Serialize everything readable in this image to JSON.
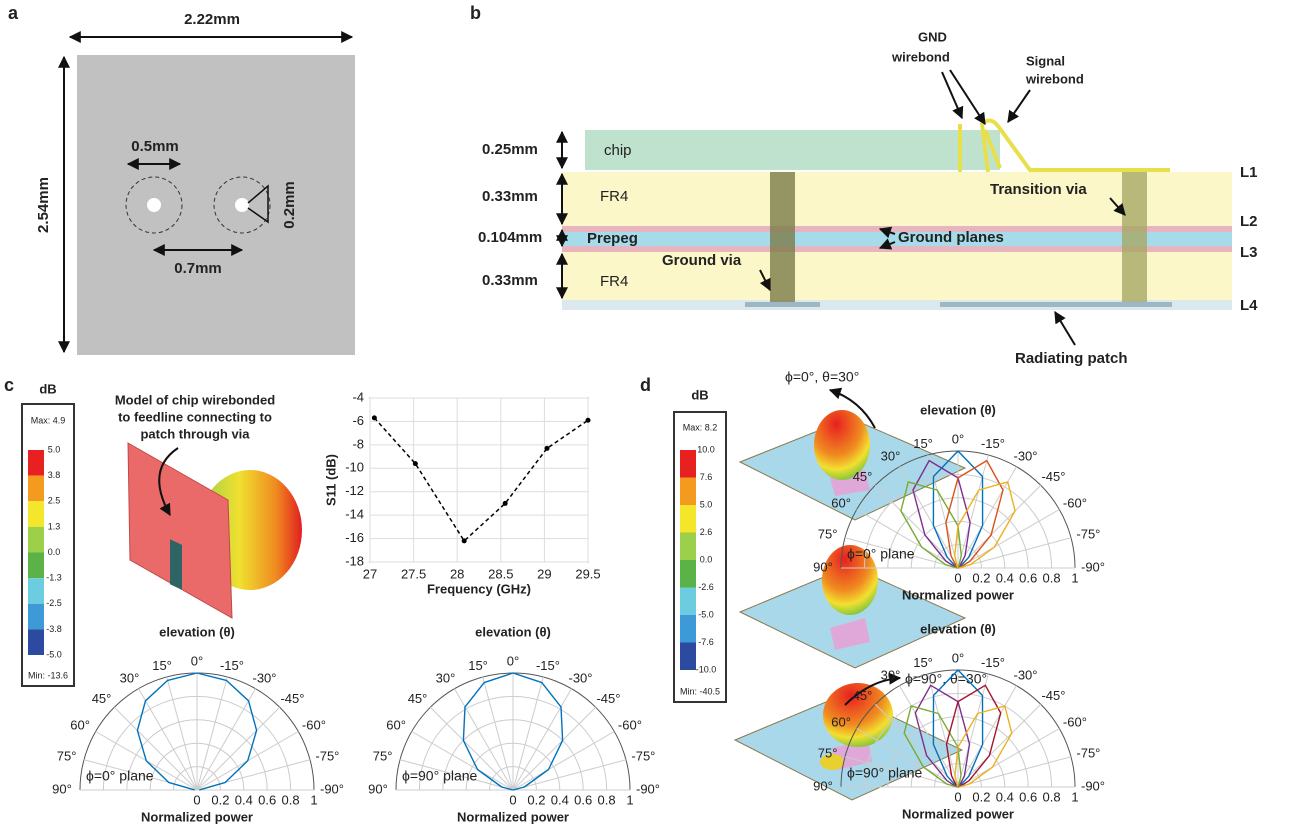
{
  "panels": {
    "a": {
      "letter": "a",
      "width": "2.22mm",
      "height": "2.54mm",
      "hole": "0.5mm",
      "gap": "0.2mm",
      "pitch": "0.7mm"
    },
    "b": {
      "letter": "b",
      "gnd_wirebond": [
        "GND",
        "wirebond"
      ],
      "signal_wirebond": [
        "Signal",
        "wirebond"
      ],
      "thick_chip": "0.25mm",
      "thick_fr4_top": "0.33mm",
      "thick_prepeg": "0.104mm",
      "thick_fr4_bottom": "0.33mm",
      "chip": "chip",
      "fr4_top": "FR4",
      "prepeg": "Prepeg",
      "fr4_bottom": "FR4",
      "ground_planes": "Ground planes",
      "transition_via": "Transition via",
      "ground_via": "Ground via",
      "radiating_patch": "Radiating patch",
      "layers": [
        "L1",
        "L2",
        "L3",
        "L4"
      ]
    },
    "c": {
      "letter": "c",
      "caption": [
        "Model of chip wirebonded",
        "to feedline connecting to",
        "patch through via"
      ],
      "colorbar": {
        "unit": "dB",
        "max": "Max: 4.9",
        "labels": [
          "5.0",
          "3.8",
          "2.5",
          "1.3",
          "0.0",
          "-1.3",
          "-2.5",
          "-3.8",
          "-5.0"
        ],
        "min": "Min: -13.6"
      }
    },
    "d": {
      "letter": "d",
      "beam_top": "ϕ=0°, θ=30°",
      "beam_bottom": "ϕ=90°, θ=30°",
      "colorbar": {
        "unit": "dB",
        "max": "Max: 8.2",
        "labels": [
          "10.0",
          "7.6",
          "5.0",
          "2.6",
          "0.0",
          "-2.6",
          "-5.0",
          "-7.6",
          "-10.0"
        ],
        "min": "Min: -40.5"
      }
    }
  },
  "chart_data": [
    {
      "type": "line",
      "xlabel": "Frequency (GHz)",
      "ylabel": "S11 (dB)",
      "color": "#000000",
      "grid": true,
      "x": [
        27.05,
        27.52,
        28.08,
        28.55,
        29.03,
        29.5
      ],
      "values": [
        -5.7,
        -9.6,
        -16.2,
        -13,
        -8.3,
        -5.9
      ],
      "xlim": [
        27,
        29.5
      ],
      "xticks": [
        27,
        27.5,
        28,
        28.5,
        29,
        29.5
      ],
      "ylim": [
        -18,
        -4
      ],
      "yticks": [
        -18,
        -16,
        -14,
        -12,
        -10,
        -8,
        -6,
        -4
      ]
    },
    {
      "type": "polar",
      "title": "elevation (θ)",
      "xlabel": "Normalized power",
      "annotation": "ϕ=0° plane",
      "x": [
        -90,
        -75,
        -60,
        -45,
        -30,
        -15,
        0,
        15,
        30,
        45,
        60,
        75,
        90
      ],
      "xlim": [
        -90,
        90
      ],
      "xticks": [
        {
          "value": 90,
          "label": "90°"
        },
        {
          "value": 75,
          "label": "75°"
        },
        {
          "value": 60,
          "label": "60°"
        },
        {
          "value": 45,
          "label": "45°"
        },
        {
          "value": 30,
          "label": "30°"
        },
        {
          "value": 15,
          "label": "15°"
        },
        {
          "value": 0,
          "label": "0°"
        },
        {
          "value": -15,
          "label": "-15°"
        },
        {
          "value": -30,
          "label": "-30°"
        },
        {
          "value": -45,
          "label": "-45°"
        },
        {
          "value": -60,
          "label": "-60°"
        },
        {
          "value": -75,
          "label": "-75°"
        },
        {
          "value": -90,
          "label": "-90°"
        }
      ],
      "ylim": [
        0,
        1
      ],
      "yticks": [
        0,
        0.2,
        0.4,
        0.6,
        0.8,
        1
      ],
      "series": [
        {
          "color": "#0072bd",
          "values": [
            0.02,
            0.25,
            0.5,
            0.72,
            0.88,
            0.97,
            1,
            0.97,
            0.88,
            0.72,
            0.5,
            0.25,
            0.02
          ]
        }
      ]
    },
    {
      "type": "polar",
      "title": "elevation (θ)",
      "xlabel": "Normalized power",
      "annotation": "ϕ=90° plane",
      "x": [
        -90,
        -75,
        -60,
        -45,
        -30,
        -15,
        0,
        15,
        30,
        45,
        60,
        75,
        90
      ],
      "xlim": [
        -90,
        90
      ],
      "xticks": [
        {
          "value": 90,
          "label": "90°"
        },
        {
          "value": 75,
          "label": "75°"
        },
        {
          "value": 60,
          "label": "60°"
        },
        {
          "value": 45,
          "label": "45°"
        },
        {
          "value": 30,
          "label": "30°"
        },
        {
          "value": 15,
          "label": "15°"
        },
        {
          "value": 0,
          "label": "0°"
        },
        {
          "value": -15,
          "label": "-15°"
        },
        {
          "value": -30,
          "label": "-30°"
        },
        {
          "value": -45,
          "label": "-45°"
        },
        {
          "value": -60,
          "label": "-60°"
        },
        {
          "value": -75,
          "label": "-75°"
        },
        {
          "value": -90,
          "label": "-90°"
        }
      ],
      "ylim": [
        0,
        1
      ],
      "yticks": [
        0,
        0.2,
        0.4,
        0.6,
        0.8,
        1
      ],
      "series": [
        {
          "color": "#0072bd",
          "values": [
            0,
            0.1,
            0.35,
            0.6,
            0.82,
            0.95,
            1,
            0.95,
            0.82,
            0.6,
            0.35,
            0.1,
            0
          ]
        }
      ]
    },
    {
      "type": "polar",
      "title": "elevation (θ)",
      "xlabel": "Normalized power",
      "annotation": "ϕ=0° plane",
      "x": [
        -90,
        -75,
        -60,
        -45,
        -30,
        -15,
        0,
        15,
        30,
        45,
        60,
        75,
        90
      ],
      "xlim": [
        -90,
        90
      ],
      "xticks": [
        {
          "value": 90,
          "label": "90°"
        },
        {
          "value": 75,
          "label": "75°"
        },
        {
          "value": 60,
          "label": "60°"
        },
        {
          "value": 45,
          "label": "45°"
        },
        {
          "value": 30,
          "label": "30°"
        },
        {
          "value": 15,
          "label": "15°"
        },
        {
          "value": 0,
          "label": "0°"
        },
        {
          "value": -15,
          "label": "-15°"
        },
        {
          "value": -30,
          "label": "-30°"
        },
        {
          "value": -45,
          "label": "-45°"
        },
        {
          "value": -60,
          "label": "-60°"
        },
        {
          "value": -75,
          "label": "-75°"
        },
        {
          "value": -90,
          "label": "-90°"
        }
      ],
      "ylim": [
        0,
        1
      ],
      "yticks": [
        0,
        0.2,
        0.4,
        0.6,
        0.8,
        1
      ],
      "series": [
        {
          "color": "#0072bd",
          "values": [
            0,
            0,
            0.02,
            0.13,
            0.42,
            0.81,
            1,
            0.81,
            0.42,
            0.13,
            0.02,
            0,
            0
          ]
        },
        {
          "color": "#7e2f8e",
          "values": [
            0,
            0,
            0,
            0.02,
            0.12,
            0.4,
            0.77,
            0.95,
            0.77,
            0.4,
            0.12,
            0.02,
            0
          ]
        },
        {
          "color": "#77ac30",
          "values": [
            0,
            0,
            0,
            0,
            0.01,
            0.11,
            0.36,
            0.69,
            0.85,
            0.69,
            0.36,
            0.11,
            0.01
          ]
        },
        {
          "color": "#d95319",
          "values": [
            0,
            0.02,
            0.12,
            0.4,
            0.77,
            0.95,
            0.77,
            0.4,
            0.12,
            0.02,
            0,
            0,
            0
          ]
        },
        {
          "color": "#edb120",
          "values": [
            0.01,
            0.11,
            0.36,
            0.69,
            0.85,
            0.69,
            0.36,
            0.11,
            0.01,
            0,
            0,
            0,
            0
          ]
        }
      ]
    },
    {
      "type": "polar",
      "title": "elevation (θ)",
      "xlabel": "Normalized power",
      "annotation": "ϕ=90° plane",
      "x": [
        -90,
        -75,
        -60,
        -45,
        -30,
        -15,
        0,
        15,
        30,
        45,
        60,
        75,
        90
      ],
      "xlim": [
        -90,
        90
      ],
      "xticks": [
        {
          "value": 90,
          "label": "90°"
        },
        {
          "value": 75,
          "label": "75°"
        },
        {
          "value": 60,
          "label": "60°"
        },
        {
          "value": 45,
          "label": "45°"
        },
        {
          "value": 30,
          "label": "30°"
        },
        {
          "value": 15,
          "label": "15°"
        },
        {
          "value": 0,
          "label": "0°"
        },
        {
          "value": -15,
          "label": "-15°"
        },
        {
          "value": -30,
          "label": "-30°"
        },
        {
          "value": -45,
          "label": "-45°"
        },
        {
          "value": -60,
          "label": "-60°"
        },
        {
          "value": -75,
          "label": "-75°"
        },
        {
          "value": -90,
          "label": "-90°"
        }
      ],
      "ylim": [
        0,
        1
      ],
      "yticks": [
        0,
        0.2,
        0.4,
        0.6,
        0.8,
        1
      ],
      "series": [
        {
          "color": "#0072bd",
          "values": [
            0,
            0,
            0.02,
            0.13,
            0.42,
            0.81,
            1,
            0.81,
            0.42,
            0.13,
            0.02,
            0,
            0
          ]
        },
        {
          "color": "#7e2f8e",
          "values": [
            0,
            0,
            0,
            0.02,
            0.11,
            0.38,
            0.73,
            0.9,
            0.73,
            0.38,
            0.11,
            0.02,
            0
          ]
        },
        {
          "color": "#77ac30",
          "values": [
            0,
            0,
            0,
            0,
            0.01,
            0.1,
            0.34,
            0.65,
            0.8,
            0.65,
            0.34,
            0.1,
            0.01
          ]
        },
        {
          "color": "#a2142f",
          "values": [
            0,
            0.02,
            0.11,
            0.38,
            0.73,
            0.9,
            0.73,
            0.38,
            0.11,
            0.02,
            0,
            0,
            0
          ]
        },
        {
          "color": "#edb120",
          "values": [
            0.01,
            0.1,
            0.34,
            0.65,
            0.8,
            0.65,
            0.34,
            0.1,
            0.01,
            0,
            0,
            0,
            0
          ]
        }
      ]
    }
  ]
}
